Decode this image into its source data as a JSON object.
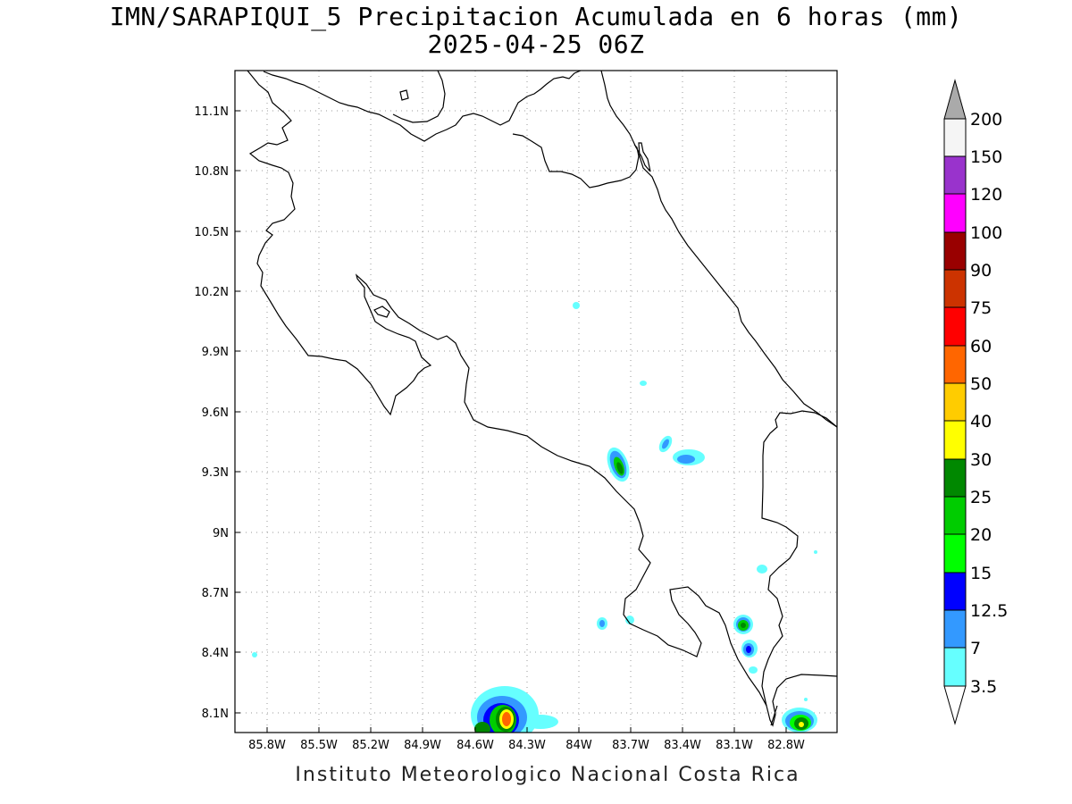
{
  "header": {
    "title": "IMN/SARAPIQUI_5 Precipitacion Acumulada en 6 horas (mm)",
    "subtitle": "2025-04-25 06Z"
  },
  "footer": {
    "credit": "Instituto Meteorologico Nacional Costa Rica"
  },
  "map": {
    "lon_ticks": [
      "85.8W",
      "85.5W",
      "85.2W",
      "84.9W",
      "84.6W",
      "84.3W",
      "84W",
      "83.7W",
      "83.4W",
      "83.1W",
      "82.8W"
    ],
    "lat_ticks": [
      "11.1N",
      "10.8N",
      "10.5N",
      "10.2N",
      "9.9N",
      "9.6N",
      "9.3N",
      "9N",
      "8.7N",
      "8.4N",
      "8.1N"
    ],
    "grid": "dotted",
    "coastline_color": "#000000"
  },
  "colorbar": {
    "labels": [
      "3.5",
      "7",
      "12.5",
      "15",
      "20",
      "25",
      "30",
      "40",
      "50",
      "60",
      "75",
      "90",
      "100",
      "120",
      "150",
      "200"
    ],
    "colors": [
      "#66ffff",
      "#3399ff",
      "#0000ff",
      "#00ff00",
      "#00cc00",
      "#008800",
      "#ffff00",
      "#ffcc00",
      "#ff6600",
      "#ff0000",
      "#cc3300",
      "#990000",
      "#ff00ff",
      "#9933cc",
      "#f5f5f5",
      "#aaaaaa"
    ]
  }
}
